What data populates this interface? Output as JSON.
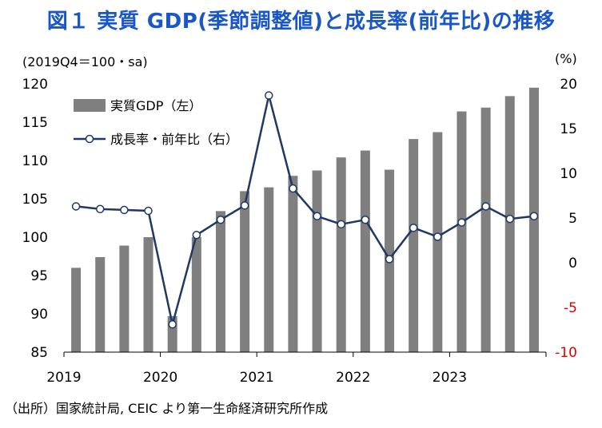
{
  "title": "図１ 実質 GDP(季節調整値)と成長率(前年比)の推移",
  "left_axis_unit": "(2019Q4＝100・sa)",
  "right_axis_unit": "(%)",
  "source": "（出所）国家統計局, CEIC より第一生命経済研究所作成",
  "colors": {
    "title": "#1a57c6",
    "bars": "#7f7f7f",
    "line": "#1f3864",
    "negative_ticks": "#e00000"
  },
  "chart_data": {
    "type": "bar+line",
    "title": "図１ 実質 GDP(季節調整値)と成長率(前年比)の推移",
    "x_tick_labels": [
      "2019",
      "2020",
      "2021",
      "2022",
      "2023"
    ],
    "quarters": [
      "2019Q1",
      "2019Q2",
      "2019Q3",
      "2019Q4",
      "2020Q1",
      "2020Q2",
      "2020Q3",
      "2020Q4",
      "2021Q1",
      "2021Q2",
      "2021Q3",
      "2021Q4",
      "2022Q1",
      "2022Q2",
      "2022Q3",
      "2022Q4",
      "2023Q1",
      "2023Q2",
      "2023Q3",
      "2023Q4"
    ],
    "left_axis": {
      "min": 85,
      "max": 120,
      "step": 5,
      "ticks": [
        "85",
        "90",
        "95",
        "100",
        "105",
        "110",
        "115",
        "120"
      ]
    },
    "right_axis": {
      "min": -10,
      "max": 20,
      "step": 5,
      "ticks": [
        "-10",
        "-5",
        "0",
        "5",
        "10",
        "15",
        "20"
      ]
    },
    "series": [
      {
        "name": "実質GDP（左）",
        "type": "bar",
        "axis": "left",
        "values": [
          96.0,
          97.4,
          98.9,
          100.0,
          89.7,
          100.0,
          103.4,
          106.0,
          106.5,
          108.0,
          108.7,
          110.4,
          111.3,
          108.8,
          112.8,
          113.7,
          116.4,
          116.9,
          118.4,
          119.5
        ]
      },
      {
        "name": "成長率・前年比（右）",
        "type": "line",
        "axis": "right",
        "values": [
          6.3,
          6.0,
          5.9,
          5.8,
          -6.9,
          3.1,
          4.8,
          6.4,
          18.7,
          8.3,
          5.2,
          4.3,
          4.8,
          0.4,
          3.9,
          2.9,
          4.5,
          6.3,
          4.9,
          5.2
        ]
      }
    ]
  }
}
